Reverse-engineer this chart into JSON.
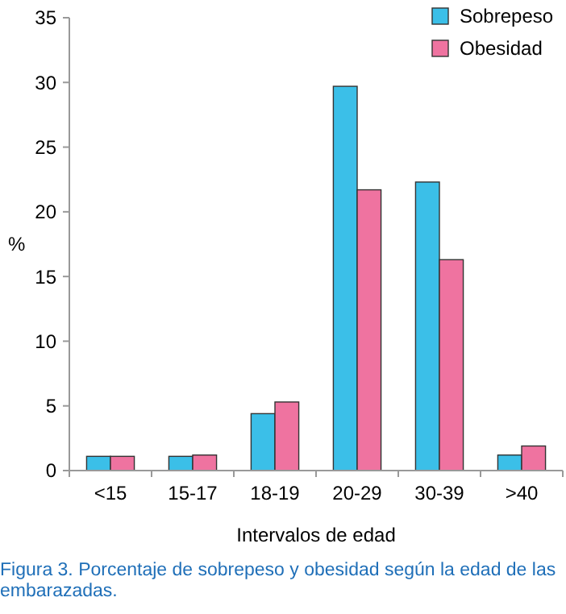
{
  "chart_data": {
    "type": "bar",
    "ylabel": "%",
    "xlabel": "Intervalos de edad",
    "categories": [
      "<15",
      "15-17",
      "18-19",
      "20-29",
      "30-39",
      ">40"
    ],
    "series": [
      {
        "name": "Sobrepeso",
        "color": "#3bbfe8",
        "values": [
          1.1,
          1.1,
          4.4,
          29.7,
          22.3,
          1.2
        ]
      },
      {
        "name": "Obesidad",
        "color": "#ef73a0",
        "values": [
          1.1,
          1.2,
          5.3,
          21.7,
          16.3,
          1.9
        ]
      }
    ],
    "ylim": [
      0,
      35
    ],
    "yticks": [
      0,
      5,
      10,
      15,
      20,
      25,
      30,
      35
    ],
    "grid": false,
    "legend": "top right",
    "annotations": [
      "Figura 3. Porcentaje de sobrepeso y obesidad según la edad de las embarazadas."
    ]
  }
}
